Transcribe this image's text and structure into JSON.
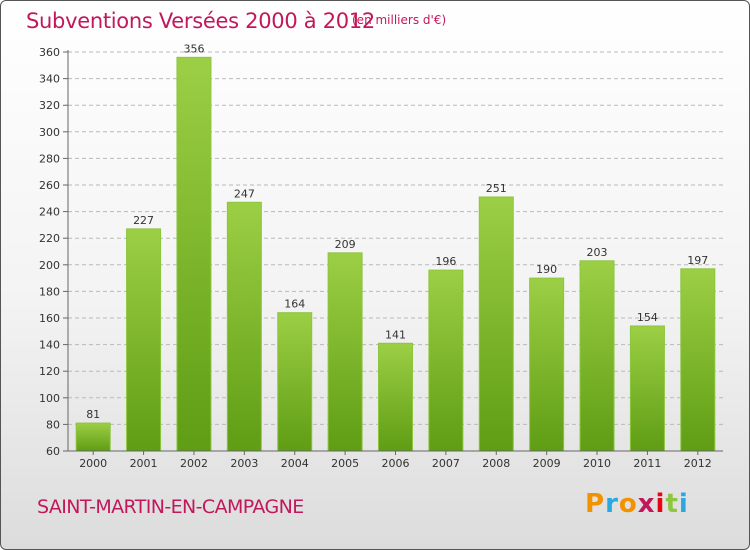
{
  "title": "Subventions Versées 2000 à 2012",
  "subtitle": "(en milliers d'€)",
  "commune": "SAINT-MARTIN-EN-CAMPAGNE",
  "logo": {
    "text": "Proxiti",
    "letter_colors": [
      "#f39200",
      "#2aa8e0",
      "#f39200",
      "#c2185b",
      "#e30613",
      "#8dc63f",
      "#2aa8e0"
    ]
  },
  "colors": {
    "bar_top": "#9ccf45",
    "bar_bottom": "#5f9d14",
    "grid": "#b9b9b9",
    "axis": "#666666",
    "text": "#333333",
    "title": "#c2185b"
  },
  "chart_data": {
    "type": "bar",
    "title": "Subventions Versées 2000 à 2012",
    "subtitle": "(en milliers d'€)",
    "xlabel": "",
    "ylabel": "",
    "categories": [
      "2000",
      "2001",
      "2002",
      "2003",
      "2004",
      "2005",
      "2006",
      "2007",
      "2008",
      "2009",
      "2010",
      "2011",
      "2012"
    ],
    "values": [
      81,
      227,
      356,
      247,
      164,
      209,
      141,
      196,
      251,
      190,
      203,
      154,
      197
    ],
    "ylim": [
      60,
      360
    ],
    "yticks": [
      60,
      80,
      100,
      120,
      140,
      160,
      180,
      200,
      220,
      240,
      260,
      280,
      300,
      320,
      340,
      360
    ],
    "grid": true,
    "legend": "none"
  }
}
